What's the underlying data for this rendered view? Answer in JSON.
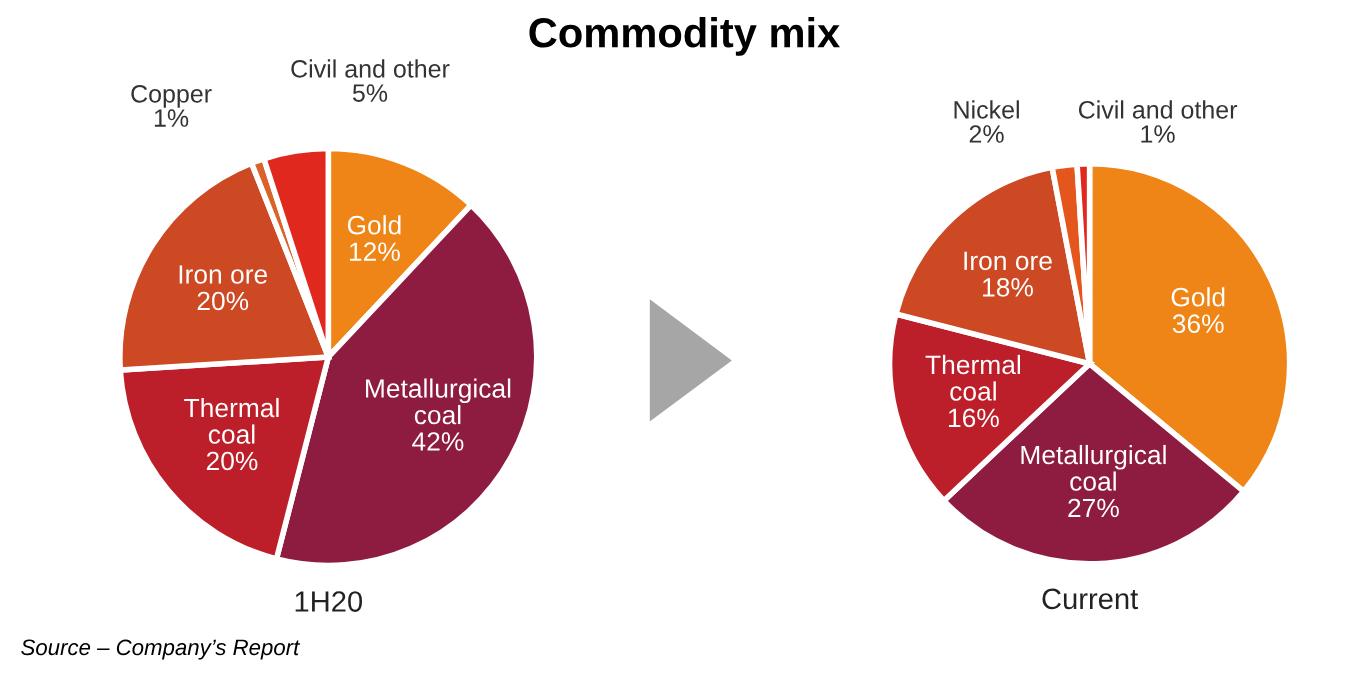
{
  "chart_data": [
    {
      "type": "pie",
      "title": "Commodity mix",
      "xlabel": "1H20",
      "annotations": [
        "Source – Company’s Report"
      ],
      "categories": [
        "Gold",
        "Metallurgical coal",
        "Thermal coal",
        "Iron ore",
        "Copper",
        "Civil and other"
      ],
      "values": [
        12,
        42,
        20,
        20,
        1,
        5
      ],
      "value_labels": [
        "12%",
        "42%",
        "20%",
        "20%",
        "1%",
        "5%"
      ],
      "colors": [
        "#ee8516",
        "#8e1c40",
        "#bd1f2a",
        "#cc4924",
        "#d9632a",
        "#e1281f"
      ]
    },
    {
      "type": "pie",
      "xlabel": "Current",
      "categories": [
        "Gold",
        "Metallurgical coal",
        "Thermal coal",
        "Iron ore",
        "Nickel",
        "Civil and other"
      ],
      "values": [
        36,
        27,
        16,
        18,
        2,
        1
      ],
      "value_labels": [
        "36%",
        "27%",
        "16%",
        "18%",
        "2%",
        "1%"
      ],
      "colors": [
        "#ee8516",
        "#8e1c40",
        "#bd1f2a",
        "#cc4924",
        "#e5561c",
        "#e1281f"
      ]
    }
  ]
}
